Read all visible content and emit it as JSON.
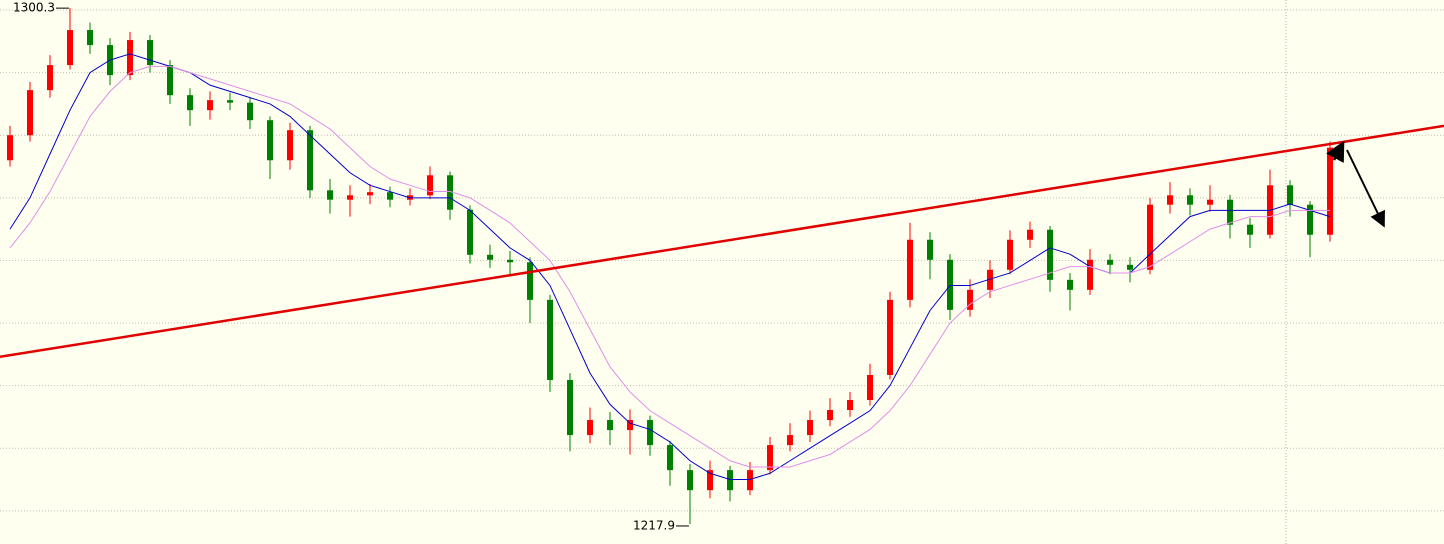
{
  "chart_data": {
    "type": "candlestick",
    "ylim": [
      1214.7,
      1301.6
    ],
    "yticks": [
      1220,
      1230,
      1240,
      1250,
      1260,
      1270,
      1280,
      1290,
      1300
    ],
    "grid": true,
    "up_color": "#ff0000",
    "down_color": "#008000",
    "candles": {
      "open": [
        1276.0,
        1280.0,
        1287.2,
        1291.2,
        1296.8,
        1294.4,
        1289.6,
        1295.2,
        1291.2,
        1286.4,
        1284.0,
        1285.6,
        1285.2,
        1282.4,
        1276.0,
        1280.8,
        1271.2,
        1269.7,
        1270.4,
        1270.9,
        1269.7,
        1270.4,
        1273.6,
        1268.1,
        1260.9,
        1260.1,
        1259.7,
        1253.7,
        1240.9,
        1232.1,
        1234.5,
        1232.9,
        1234.5,
        1230.5,
        1226.5,
        1223.3,
        1226.5,
        1223.3,
        1226.5,
        1230.5,
        1232.1,
        1234.5,
        1236.1,
        1237.7,
        1241.7,
        1253.7,
        1263.3,
        1260.1,
        1252.1,
        1255.3,
        1258.5,
        1263.3,
        1264.9,
        1256.9,
        1255.3,
        1260.1,
        1259.3,
        1258.5,
        1268.9,
        1270.4,
        1268.9,
        1269.7,
        1265.7,
        1264.1,
        1272.0,
        1268.9,
        1264.1
      ],
      "high": [
        1281.5,
        1288.5,
        1292.8,
        1300.3,
        1298.0,
        1295.5,
        1296.5,
        1296.0,
        1292.0,
        1287.5,
        1287.0,
        1286.8,
        1286.0,
        1283.0,
        1282.0,
        1281.5,
        1273.0,
        1272.0,
        1272.2,
        1271.8,
        1271.5,
        1275.0,
        1274.2,
        1268.8,
        1262.5,
        1261.5,
        1260.5,
        1254.5,
        1242.0,
        1236.5,
        1235.8,
        1236.2,
        1235.2,
        1231.2,
        1227.5,
        1228.0,
        1227.2,
        1227.8,
        1231.8,
        1234.0,
        1236.0,
        1238.0,
        1239.0,
        1243.5,
        1255.0,
        1266.0,
        1264.5,
        1261.0,
        1257.0,
        1260.0,
        1264.8,
        1266.2,
        1265.5,
        1258.0,
        1261.8,
        1261.0,
        1260.5,
        1270.0,
        1272.5,
        1271.5,
        1272.0,
        1270.5,
        1266.8,
        1274.5,
        1272.8,
        1269.5,
        1279.0
      ],
      "low": [
        1275.0,
        1279.0,
        1286.0,
        1290.5,
        1293.0,
        1288.0,
        1288.8,
        1290.0,
        1285.0,
        1281.5,
        1282.5,
        1284.0,
        1281.0,
        1273.0,
        1274.5,
        1270.0,
        1267.5,
        1267.0,
        1269.0,
        1268.5,
        1268.8,
        1269.8,
        1266.5,
        1259.5,
        1258.8,
        1257.5,
        1250.0,
        1239.0,
        1229.5,
        1230.8,
        1230.5,
        1229.0,
        1228.8,
        1224.0,
        1217.9,
        1222.0,
        1221.5,
        1222.5,
        1225.8,
        1229.5,
        1231.0,
        1233.5,
        1235.0,
        1236.8,
        1241.0,
        1252.5,
        1257.0,
        1250.5,
        1251.0,
        1254.0,
        1257.8,
        1262.0,
        1255.0,
        1252.0,
        1254.5,
        1257.8,
        1256.5,
        1257.8,
        1267.5,
        1267.2,
        1267.8,
        1263.5,
        1262.0,
        1263.5,
        1267.0,
        1260.5,
        1263.0
      ],
      "close": [
        1280.0,
        1287.2,
        1291.2,
        1296.8,
        1294.4,
        1289.6,
        1295.2,
        1291.2,
        1286.4,
        1284.0,
        1285.6,
        1285.2,
        1282.4,
        1276.0,
        1280.8,
        1271.2,
        1269.7,
        1270.4,
        1270.9,
        1269.7,
        1270.4,
        1273.6,
        1268.1,
        1260.9,
        1260.1,
        1259.7,
        1253.7,
        1240.9,
        1232.1,
        1234.5,
        1232.9,
        1234.5,
        1230.5,
        1226.5,
        1223.3,
        1226.5,
        1223.3,
        1226.5,
        1230.5,
        1232.1,
        1234.5,
        1236.1,
        1237.7,
        1241.7,
        1253.7,
        1263.3,
        1260.1,
        1252.1,
        1255.3,
        1258.5,
        1263.3,
        1264.9,
        1256.9,
        1255.3,
        1260.1,
        1259.3,
        1258.5,
        1268.9,
        1270.4,
        1268.9,
        1269.7,
        1265.7,
        1264.1,
        1272.0,
        1268.9,
        1264.1,
        1278.0
      ]
    },
    "series": [
      {
        "color": "#0000cc",
        "values": [
          1265,
          1270,
          1277,
          1284,
          1290,
          1292,
          1293,
          1292,
          1291,
          1290,
          1288,
          1287,
          1286,
          1285,
          1283,
          1280,
          1277,
          1274,
          1272,
          1271,
          1270,
          1270,
          1270,
          1268,
          1265,
          1262,
          1260,
          1256,
          1249,
          1242,
          1237,
          1234,
          1233,
          1231,
          1228,
          1226,
          1225,
          1225,
          1226,
          1228,
          1230,
          1232,
          1234,
          1236,
          1240,
          1246,
          1252,
          1256,
          1256,
          1257,
          1258,
          1260,
          1262,
          1261,
          1259,
          1258,
          1258,
          1261,
          1264,
          1267,
          1268,
          1268,
          1268,
          1268,
          1269,
          1268,
          1267
        ]
      },
      {
        "color": "#e08ee8",
        "values": [
          1262,
          1266,
          1271,
          1277,
          1283,
          1287,
          1290,
          1291,
          1291,
          1290,
          1289,
          1288,
          1287,
          1286,
          1285,
          1283,
          1281,
          1278,
          1275,
          1273,
          1272,
          1271,
          1271,
          1270,
          1268,
          1266,
          1263,
          1260,
          1255,
          1249,
          1243,
          1239,
          1236,
          1234,
          1232,
          1230,
          1228,
          1227,
          1227,
          1227,
          1228,
          1229,
          1231,
          1233,
          1236,
          1240,
          1245,
          1250,
          1253,
          1255,
          1256,
          1257,
          1258,
          1259,
          1259,
          1258,
          1258,
          1259,
          1261,
          1263,
          1265,
          1266,
          1267,
          1267,
          1268,
          1268,
          1268
        ]
      }
    ],
    "trendline": {
      "color": "#e00000",
      "values": [
        1244.6,
        1281.5
      ]
    },
    "annotations": [
      1300.3,
      1217.9
    ]
  }
}
